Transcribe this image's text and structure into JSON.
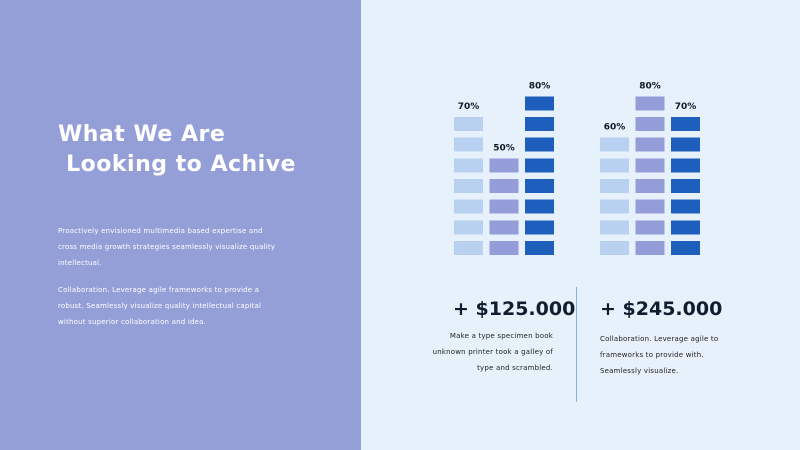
{
  "colors": {
    "left_panel": "#949fd7",
    "background": "#e7f1fb",
    "bar_light": "#b8d1f1",
    "bar_medium": "#959dd8",
    "bar_dark": "#1e5fbd"
  },
  "headline": "What We Are\n Looking to Achive",
  "paragraphs": [
    "Proactively envisioned multimedia based expertise and cross media growth strategies seamlessly visualize quality intellectual.",
    "Collaboration. Leverage agile frameworks to provide a robust. Seamlessly visualize quality intellectual capital without superior collaboration and idea."
  ],
  "chart_data": {
    "type": "bar",
    "groups": [
      {
        "bars": [
          {
            "value": 70,
            "label": "70%",
            "color": "#b8d1f1"
          },
          {
            "value": 50,
            "label": "50%",
            "color": "#959dd8"
          },
          {
            "value": 80,
            "label": "80%",
            "color": "#1e5fbd"
          }
        ]
      },
      {
        "bars": [
          {
            "value": 60,
            "label": "60%",
            "color": "#b8d1f1"
          },
          {
            "value": 80,
            "label": "80%",
            "color": "#959dd8"
          },
          {
            "value": 70,
            "label": "70%",
            "color": "#1e5fbd"
          }
        ]
      }
    ],
    "ylim": [
      0,
      80
    ],
    "grid": false
  },
  "stats": [
    {
      "value": "+ $125.000",
      "description": "Make a type specimen book unknown printer took a galley of type and scrambled."
    },
    {
      "value": "+ $245.000",
      "description": "Collaboration. Leverage agile to frameworks to provide with. Seamlessly visualize."
    }
  ]
}
